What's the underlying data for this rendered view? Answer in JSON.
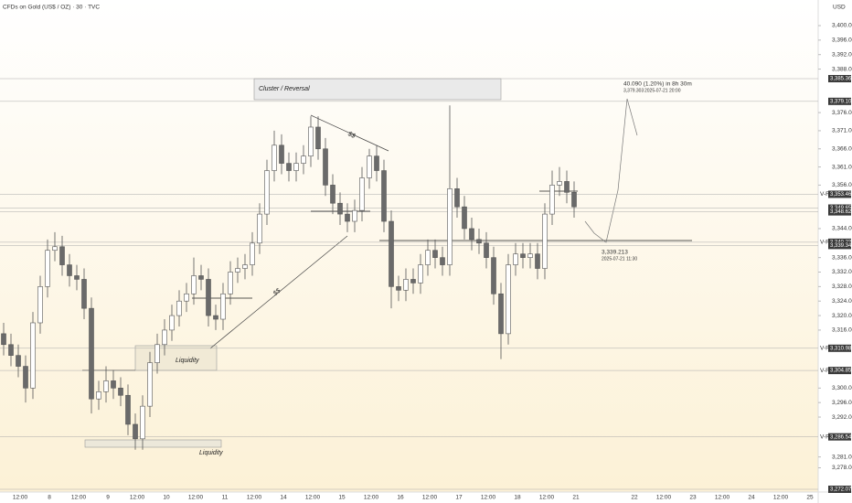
{
  "chart_data": {
    "type": "candlestick",
    "title": "CFDs on Gold (US$ / OZ) · 30 · TVC",
    "currency": "USD",
    "ylim": [
      3272.077,
      3400
    ],
    "yticks": [
      {
        "value": 3400,
        "label": "3,400.000"
      },
      {
        "value": 3396,
        "label": "3,396.000"
      },
      {
        "value": 3392,
        "label": "3,392.000"
      },
      {
        "value": 3388,
        "label": "3,388.000"
      },
      {
        "value": 3376,
        "label": "3,376.000"
      },
      {
        "value": 3371,
        "label": "3,371.000"
      },
      {
        "value": 3366,
        "label": "3,366.000"
      },
      {
        "value": 3361,
        "label": "3,361.000"
      },
      {
        "value": 3356,
        "label": "3,356.000"
      },
      {
        "value": 3344,
        "label": "3,344.000"
      },
      {
        "value": 3336,
        "label": "3,336.000"
      },
      {
        "value": 3332,
        "label": "3,332.000"
      },
      {
        "value": 3328,
        "label": "3,328.000"
      },
      {
        "value": 3324,
        "label": "3,324.000"
      },
      {
        "value": 3320,
        "label": "3,320.000"
      },
      {
        "value": 3316,
        "label": "3,316.000"
      },
      {
        "value": 3300,
        "label": "3,300.000"
      },
      {
        "value": 3296,
        "label": "3,296.000"
      },
      {
        "value": 3292,
        "label": "3,292.000"
      },
      {
        "value": 3281,
        "label": "3,281.000"
      },
      {
        "value": 3278,
        "label": "3,278.000"
      }
    ],
    "categories": [
      "12:00",
      "8",
      "12:00",
      "9",
      "12:00",
      "10",
      "12:00",
      "11",
      "12:00",
      "14",
      "12:00",
      "15",
      "12:00",
      "16",
      "12:00",
      "17",
      "12:00",
      "18",
      "12:00",
      "21",
      null,
      "22",
      "12:00",
      "23",
      "12:00",
      "24",
      "12:00",
      "25"
    ],
    "open": [
      3315,
      3312,
      3309,
      3306,
      3300,
      3318,
      3328,
      3338,
      3339,
      3334,
      3331,
      3330,
      3322,
      3297,
      3299,
      3302,
      3300,
      3298,
      3290,
      3286,
      3295,
      3307,
      3312,
      3316,
      3320,
      3324,
      3326,
      3331,
      3330,
      3320,
      3319,
      3326,
      3332,
      3333,
      3334,
      3340,
      3348,
      3360,
      3367,
      3362,
      3360,
      3362,
      3364,
      3372,
      3366,
      3356,
      3351,
      3348,
      3346,
      3349,
      3358,
      3364,
      3360,
      3346,
      3328,
      3327,
      3330,
      3329,
      3334,
      3338,
      3336,
      3334,
      3355,
      3350,
      3344,
      3341,
      3340,
      3336,
      3326,
      3315,
      3334,
      3337,
      3336,
      3337,
      3333,
      3348,
      3356,
      3357,
      3354
    ],
    "high": [
      3318,
      3315,
      3312,
      3309,
      3321,
      3331,
      3341,
      3343,
      3342,
      3337,
      3334,
      3333,
      3325,
      3302,
      3306,
      3305,
      3303,
      3301,
      3293,
      3298,
      3310,
      3315,
      3319,
      3323,
      3327,
      3329,
      3336,
      3334,
      3333,
      3323,
      3329,
      3335,
      3336,
      3337,
      3343,
      3351,
      3363,
      3371,
      3370,
      3365,
      3365,
      3367,
      3375,
      3375,
      3369,
      3359,
      3354,
      3351,
      3352,
      3361,
      3366,
      3367,
      3363,
      3349,
      3331,
      3333,
      3333,
      3337,
      3341,
      3341,
      3339,
      3378,
      3358,
      3353,
      3347,
      3344,
      3343,
      3339,
      3329,
      3337,
      3340,
      3340,
      3340,
      3340,
      3351,
      3360,
      3361,
      3360,
      3357
    ],
    "low": [
      3309,
      3306,
      3303,
      3296,
      3297,
      3315,
      3325,
      3335,
      3331,
      3328,
      3327,
      3319,
      3293,
      3294,
      3296,
      3297,
      3295,
      3287,
      3283,
      3283,
      3292,
      3304,
      3309,
      3313,
      3317,
      3321,
      3323,
      3327,
      3317,
      3316,
      3316,
      3323,
      3329,
      3330,
      3331,
      3337,
      3345,
      3357,
      3359,
      3357,
      3357,
      3359,
      3361,
      3363,
      3353,
      3348,
      3345,
      3343,
      3343,
      3346,
      3355,
      3357,
      3343,
      3322,
      3324,
      3324,
      3326,
      3326,
      3331,
      3333,
      3331,
      3331,
      3347,
      3341,
      3338,
      3337,
      3333,
      3323,
      3308,
      3312,
      3331,
      3333,
      3333,
      3330,
      3330,
      3345,
      3353,
      3351,
      3347
    ],
    "close": [
      3312,
      3309,
      3306,
      3300,
      3318,
      3328,
      3338,
      3339,
      3334,
      3331,
      3330,
      3322,
      3297,
      3299,
      3302,
      3300,
      3298,
      3290,
      3286,
      3295,
      3307,
      3312,
      3316,
      3320,
      3324,
      3326,
      3331,
      3330,
      3320,
      3319,
      3326,
      3332,
      3333,
      3334,
      3340,
      3348,
      3360,
      3367,
      3362,
      3360,
      3362,
      3364,
      3372,
      3366,
      3356,
      3351,
      3348,
      3346,
      3349,
      3358,
      3364,
      3360,
      3346,
      3328,
      3327,
      3330,
      3329,
      3334,
      3338,
      3336,
      3334,
      3355,
      3350,
      3344,
      3341,
      3340,
      3336,
      3326,
      3315,
      3334,
      3337,
      3336,
      3337,
      3333,
      3348,
      3356,
      3357,
      3354,
      3350
    ],
    "price_tags": [
      {
        "value": 3385.365,
        "label": "3,385.365"
      },
      {
        "value": 3379.1,
        "label": "3,379.100"
      },
      {
        "value": 3353.461,
        "label": "3,353.461",
        "note": "V-R"
      },
      {
        "value": 3349.655,
        "label": "3,349.655"
      },
      {
        "value": 3348.621,
        "label": "3,348.621"
      },
      {
        "value": 3340.236,
        "label": "3,340.236",
        "note": "V-R"
      },
      {
        "value": 3339.343,
        "label": "3,339.343"
      },
      {
        "value": 3310.982,
        "label": "3,310.982",
        "note": "V-R"
      },
      {
        "value": 3304.855,
        "label": "3,304.855",
        "note": "V-R"
      },
      {
        "value": 3286.54,
        "label": "3,286.540",
        "note": "V-R"
      },
      {
        "value": 3272.077,
        "label": "3,272.077"
      }
    ],
    "annotations": {
      "cluster": "Cluster / Reversal",
      "liquidity_1": "Liquidity",
      "liquidity_2": "Liquidity",
      "ss_1": "$$",
      "ss_2": "$$",
      "target_price": "3,339.213",
      "target_time": "2025-07-21 11:30",
      "move": "40.090 (1.20%) in 8h 30m",
      "move_price": "3,379.303",
      "move_time": "2025-07-21 20:00"
    }
  }
}
